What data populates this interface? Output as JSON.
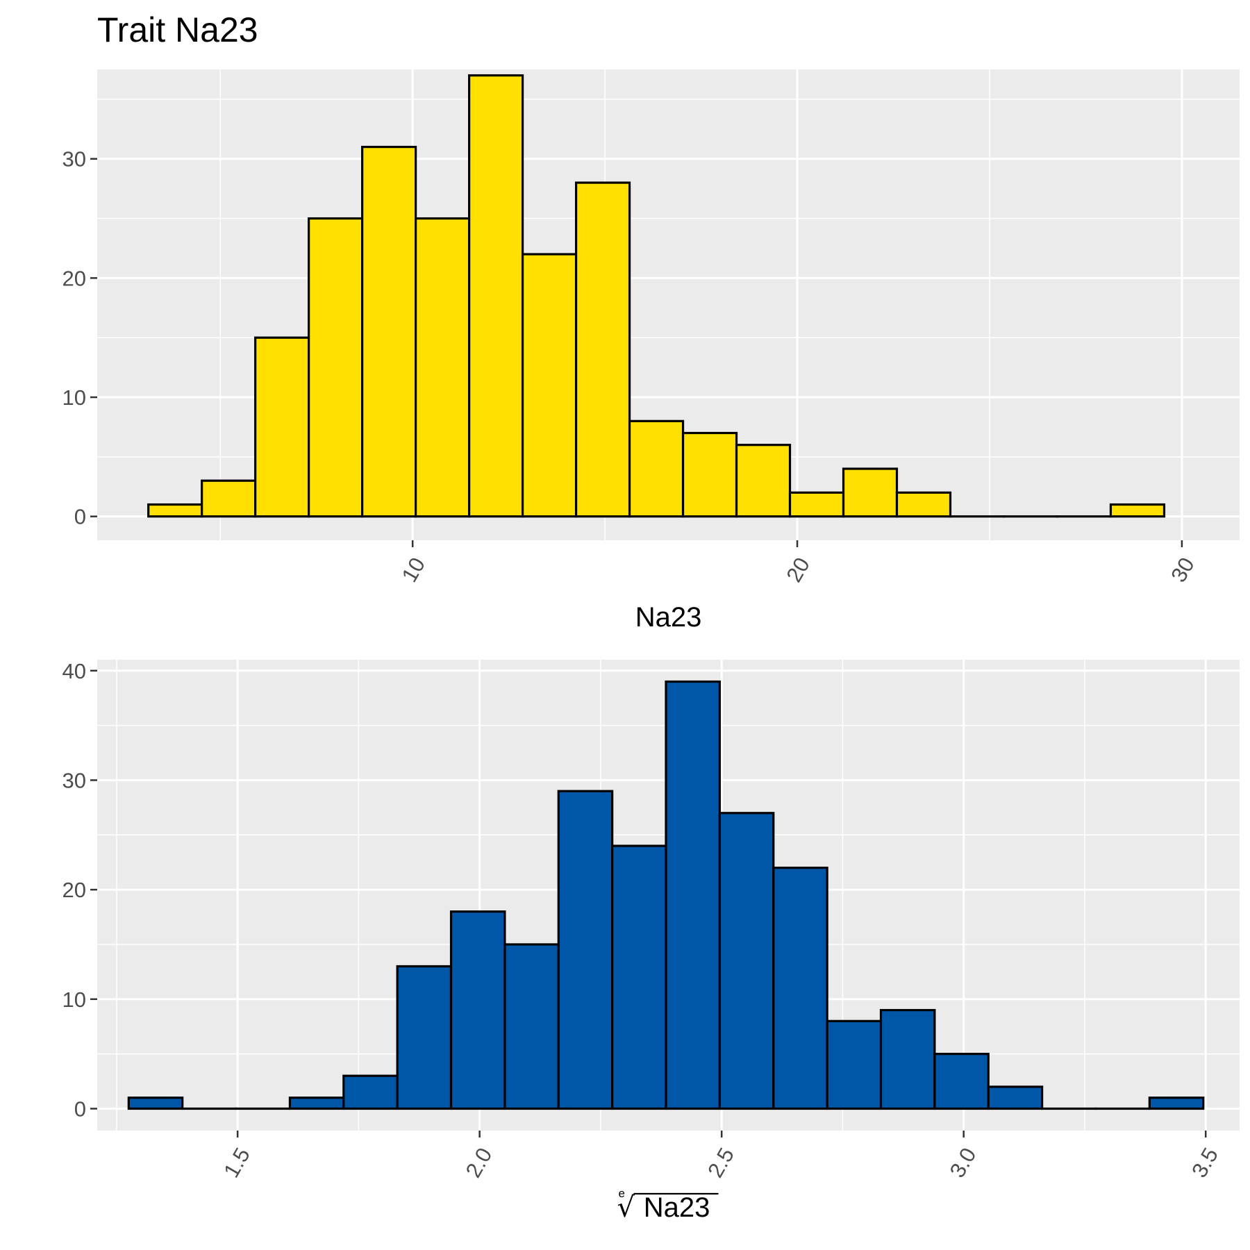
{
  "title": "Trait Na23",
  "chart_data": [
    {
      "type": "bar",
      "subtype": "histogram",
      "fill": "#FFE000",
      "outline": "#000000",
      "panel_bg": "#EBEBEB",
      "xlabel": "Na23",
      "ylabel": "",
      "xlim": [
        1.8,
        31.5
      ],
      "ylim": [
        -2,
        37.5
      ],
      "xticks": [
        10,
        20,
        30
      ],
      "xtick_labels": [
        "10",
        "20",
        "30"
      ],
      "xminor": [
        5,
        15,
        25
      ],
      "yticks": [
        0,
        10,
        20,
        30
      ],
      "ytick_labels": [
        "0",
        "10",
        "20",
        "30"
      ],
      "yminor": [
        5,
        15,
        25,
        35
      ],
      "grid": true,
      "bin_edges": [
        3.13,
        4.52,
        5.91,
        7.3,
        8.69,
        10.08,
        11.47,
        12.86,
        14.25,
        15.64,
        17.03,
        18.42,
        19.81,
        21.2,
        22.59,
        23.98,
        25.37,
        26.76,
        28.15,
        29.54
      ],
      "counts": [
        1,
        3,
        15,
        25,
        31,
        25,
        37,
        22,
        28,
        8,
        7,
        6,
        2,
        4,
        2,
        0,
        0,
        0,
        1
      ]
    },
    {
      "type": "bar",
      "subtype": "histogram",
      "fill": "#0057A8",
      "outline": "#000000",
      "panel_bg": "#EBEBEB",
      "xlabel_root_index": "e",
      "xlabel_radicand": "Na23",
      "ylabel": "",
      "xlim": [
        1.21,
        3.57
      ],
      "ylim": [
        -2,
        41
      ],
      "xticks": [
        1.5,
        2.0,
        2.5,
        3.0,
        3.5
      ],
      "xtick_labels": [
        "1.5",
        "2.0",
        "2.5",
        "3.0",
        "3.5"
      ],
      "xminor": [
        1.25,
        1.75,
        2.25,
        2.75,
        3.25
      ],
      "yticks": [
        0,
        10,
        20,
        30,
        40
      ],
      "ytick_labels": [
        "0",
        "10",
        "20",
        "30",
        "40"
      ],
      "yminor": [
        5,
        15,
        25,
        35
      ],
      "grid": true,
      "bin_edges": [
        1.275,
        1.386,
        1.497,
        1.608,
        1.719,
        1.83,
        1.941,
        2.052,
        2.163,
        2.274,
        2.385,
        2.496,
        2.607,
        2.718,
        2.829,
        2.94,
        3.051,
        3.162,
        3.273,
        3.384,
        3.495
      ],
      "counts": [
        1,
        0,
        0,
        1,
        3,
        13,
        18,
        15,
        29,
        24,
        39,
        27,
        22,
        8,
        9,
        5,
        2,
        0,
        0,
        1
      ]
    }
  ]
}
